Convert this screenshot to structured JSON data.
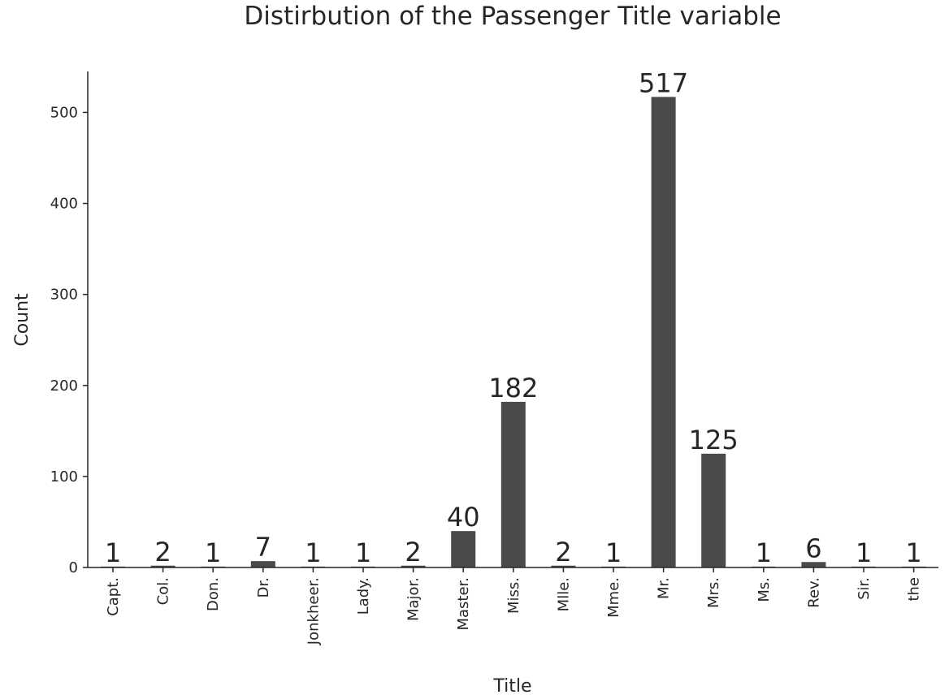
{
  "chart_data": {
    "type": "bar",
    "title": "Distirbution of the Passenger Title variable",
    "xlabel": "Title",
    "ylabel": "Count",
    "ylim": [
      0,
      545
    ],
    "yticks": [
      0,
      100,
      200,
      300,
      400,
      500
    ],
    "grid": false,
    "legend": "none",
    "categories": [
      "Capt.",
      "Col.",
      "Don.",
      "Dr.",
      "Jonkheer.",
      "Lady.",
      "Major.",
      "Master.",
      "Miss.",
      "Mlle.",
      "Mme.",
      "Mr.",
      "Mrs.",
      "Ms.",
      "Rev.",
      "Sir.",
      "the"
    ],
    "values": [
      1,
      2,
      1,
      7,
      1,
      1,
      2,
      40,
      182,
      2,
      1,
      517,
      125,
      1,
      6,
      1,
      1
    ],
    "bar_color": "#4a4a4a"
  }
}
